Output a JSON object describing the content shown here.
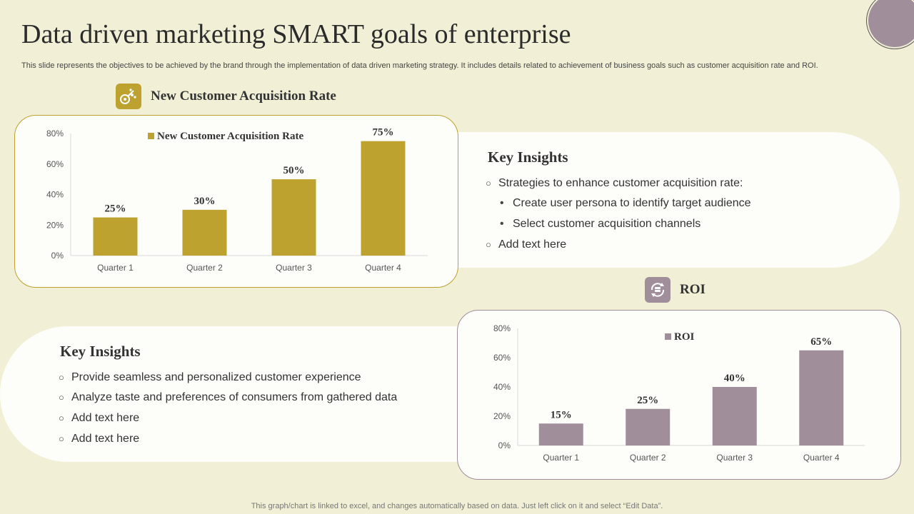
{
  "title": "Data driven marketing SMART goals of enterprise",
  "subtitle": "This slide represents the objectives to be achieved by the brand through the implementation of data driven marketing strategy. It includes details related to achievement of business goals such as customer acquisition rate and ROI.",
  "footer": "This graph/chart is linked to excel,  and changes automatically based on data. Just left click on it and select “Edit Data”.",
  "colors": {
    "gold": "#bda22f",
    "mauve": "#a08f9b",
    "background": "#f1f0d6",
    "card": "#fdfdf9"
  },
  "section1": {
    "label": "New Customer Acquisition Rate",
    "icon": "target-people-icon",
    "insights": {
      "title": "Key Insights",
      "items": [
        "Strategies to enhance customer acquisition rate:",
        "Create user persona to identify target audience",
        "Select customer acquisition channels",
        "Add text here"
      ]
    }
  },
  "section2": {
    "label": "ROI",
    "icon": "coin-cycle-icon",
    "insights": {
      "title": "Key Insights",
      "items": [
        "Provide seamless and personalized customer experience",
        "Analyze taste and preferences of consumers from gathered data",
        "Add text here",
        "Add text here"
      ]
    }
  },
  "chart_data": [
    {
      "type": "bar",
      "categories": [
        "Quarter 1",
        "Quarter 2",
        "Quarter 3",
        "Quarter 4"
      ],
      "series": [
        {
          "name": "New Customer Acquisition Rate",
          "values": [
            25,
            30,
            50,
            75
          ]
        }
      ],
      "data_labels": [
        "25%",
        "30%",
        "50%",
        "75%"
      ],
      "ylim": [
        0,
        80
      ],
      "yticks": [
        "0%",
        "20%",
        "40%",
        "60%",
        "80%"
      ],
      "legend": "top",
      "grid": false,
      "color": "#bda22f"
    },
    {
      "type": "bar",
      "categories": [
        "Quarter 1",
        "Quarter 2",
        "Quarter 3",
        "Quarter 4"
      ],
      "series": [
        {
          "name": "ROI",
          "values": [
            15,
            25,
            40,
            65
          ]
        }
      ],
      "data_labels": [
        "15%",
        "25%",
        "40%",
        "65%"
      ],
      "ylim": [
        0,
        80
      ],
      "yticks": [
        "0%",
        "20%",
        "40%",
        "60%",
        "80%"
      ],
      "legend": "top",
      "grid": false,
      "color": "#a08f9b"
    }
  ]
}
